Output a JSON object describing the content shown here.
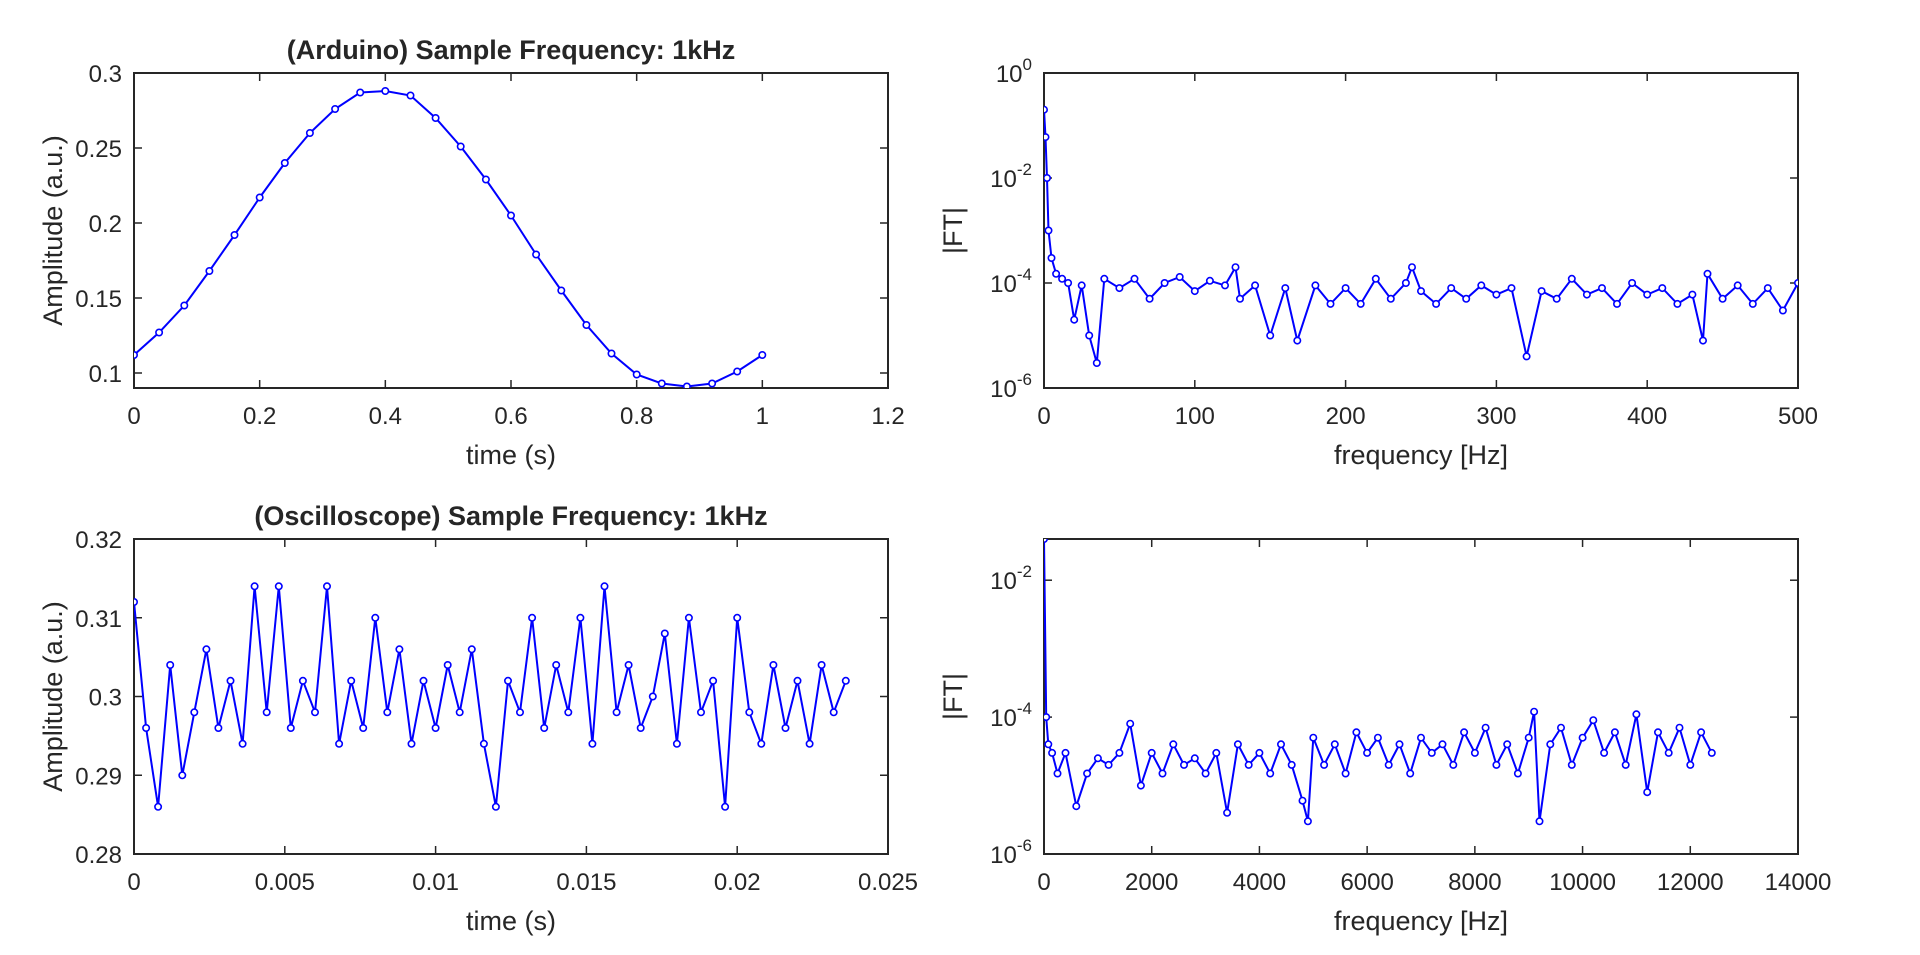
{
  "figure": {
    "background": "#ffffff",
    "line_color": "#0000ff",
    "axis_color": "#262626"
  },
  "chart_data": [
    {
      "type": "line",
      "title": "(Arduino) Sample Frequency: 1kHz",
      "xlabel": "time (s)",
      "ylabel": "Amplitude (a.u.)",
      "xlim": [
        0,
        1.2
      ],
      "ylim": [
        0.09,
        0.3
      ],
      "xticks": [
        0,
        0.2,
        0.4,
        0.6,
        0.8,
        1,
        1.2
      ],
      "xtick_labels": [
        "0",
        "0.2",
        "0.4",
        "0.6",
        "0.8",
        "1",
        "1.2"
      ],
      "yticks": [
        0.1,
        0.15,
        0.2,
        0.25,
        0.3
      ],
      "ytick_labels": [
        "0.1",
        "0.15",
        "0.2",
        "0.25",
        "0.3"
      ],
      "marker": "circle",
      "series": [
        {
          "x": [
            0,
            0.04,
            0.08,
            0.12,
            0.16,
            0.2,
            0.24,
            0.28,
            0.32,
            0.36,
            0.4,
            0.44,
            0.48,
            0.52,
            0.56,
            0.6,
            0.64,
            0.68,
            0.72,
            0.76,
            0.8,
            0.84,
            0.88,
            0.92,
            0.96,
            1
          ],
          "y": [
            0.112,
            0.127,
            0.145,
            0.168,
            0.192,
            0.217,
            0.24,
            0.26,
            0.276,
            0.287,
            0.288,
            0.285,
            0.27,
            0.251,
            0.229,
            0.205,
            0.179,
            0.155,
            0.132,
            0.113,
            0.099,
            0.093,
            0.091,
            0.093,
            0.101,
            0.112
          ]
        }
      ]
    },
    {
      "type": "line",
      "title": "",
      "xlabel": "frequency [Hz]",
      "ylabel": "|FT|",
      "xlim": [
        0,
        500
      ],
      "ylim": [
        1e-06,
        1
      ],
      "yscale": "log",
      "xticks": [
        0,
        100,
        200,
        300,
        400,
        500
      ],
      "xtick_labels": [
        "0",
        "100",
        "200",
        "300",
        "400",
        "500"
      ],
      "yticks": [
        1e-06,
        0.0001,
        0.01,
        1
      ],
      "ytick_base": "10",
      "ytick_exponents": [
        "-6",
        "-4",
        "-2",
        "0"
      ],
      "marker": "circle",
      "series": [
        {
          "x": [
            0,
            1,
            2,
            3,
            5,
            8,
            12,
            16,
            20,
            25,
            30,
            35,
            40,
            50,
            60,
            70,
            80,
            90,
            100,
            110,
            120,
            127,
            130,
            140,
            150,
            160,
            168,
            180,
            190,
            200,
            210,
            220,
            230,
            240,
            244,
            250,
            260,
            270,
            280,
            290,
            300,
            310,
            320,
            330,
            340,
            350,
            360,
            370,
            380,
            390,
            400,
            410,
            420,
            430,
            437,
            440,
            450,
            460,
            470,
            480,
            490,
            500
          ],
          "y": [
            0.2,
            0.06,
            0.01,
            0.001,
            0.0003,
            0.00015,
            0.00012,
            0.0001,
            2e-05,
            9e-05,
            1e-05,
            3e-06,
            0.00012,
            8e-05,
            0.00012,
            5e-05,
            0.0001,
            0.00013,
            7e-05,
            0.00011,
            9e-05,
            0.0002,
            5e-05,
            9e-05,
            1e-05,
            8e-05,
            8e-06,
            9e-05,
            4e-05,
            8e-05,
            4e-05,
            0.00012,
            5e-05,
            0.0001,
            0.0002,
            7e-05,
            4e-05,
            8e-05,
            5e-05,
            9e-05,
            6e-05,
            8e-05,
            4e-06,
            7e-05,
            5e-05,
            0.00012,
            6e-05,
            8e-05,
            4e-05,
            0.0001,
            6e-05,
            8e-05,
            4e-05,
            6e-05,
            8e-06,
            0.00015,
            5e-05,
            9e-05,
            4e-05,
            8e-05,
            3e-05,
            0.0001
          ]
        }
      ]
    },
    {
      "type": "line",
      "title": "(Oscilloscope) Sample Frequency: 1kHz",
      "xlabel": "time (s)",
      "ylabel": "Amplitude (a.u.)",
      "xlim": [
        0,
        0.025
      ],
      "ylim": [
        0.28,
        0.32
      ],
      "xticks": [
        0,
        0.005,
        0.01,
        0.015,
        0.02,
        0.025
      ],
      "xtick_labels": [
        "0",
        "0.005",
        "0.01",
        "0.015",
        "0.02",
        "0.025"
      ],
      "yticks": [
        0.28,
        0.29,
        0.3,
        0.31,
        0.32
      ],
      "ytick_labels": [
        "0.28",
        "0.29",
        "0.3",
        "0.31",
        "0.32"
      ],
      "marker": "circle",
      "series": [
        {
          "x": [
            0,
            0.0004,
            0.0008,
            0.0012,
            0.0016,
            0.002,
            0.0024,
            0.0028,
            0.0032,
            0.0036,
            0.004,
            0.0044,
            0.0048,
            0.0052,
            0.0056,
            0.006,
            0.0064,
            0.0068,
            0.0072,
            0.0076,
            0.008,
            0.0084,
            0.0088,
            0.0092,
            0.0096,
            0.01,
            0.0104,
            0.0108,
            0.0112,
            0.0116,
            0.012,
            0.0124,
            0.0128,
            0.0132,
            0.0136,
            0.014,
            0.0144,
            0.0148,
            0.0152,
            0.0156,
            0.016,
            0.0164,
            0.0168,
            0.0172,
            0.0176,
            0.018,
            0.0184,
            0.0188,
            0.0192,
            0.0196,
            0.02,
            0.0204,
            0.0208,
            0.0212,
            0.0216,
            0.022,
            0.0224,
            0.0228,
            0.0232,
            0.0236
          ],
          "y": [
            0.312,
            0.296,
            0.286,
            0.304,
            0.29,
            0.298,
            0.306,
            0.296,
            0.302,
            0.294,
            0.314,
            0.298,
            0.314,
            0.296,
            0.302,
            0.298,
            0.314,
            0.294,
            0.302,
            0.296,
            0.31,
            0.298,
            0.306,
            0.294,
            0.302,
            0.296,
            0.304,
            0.298,
            0.306,
            0.294,
            0.286,
            0.302,
            0.298,
            0.31,
            0.296,
            0.304,
            0.298,
            0.31,
            0.294,
            0.314,
            0.298,
            0.304,
            0.296,
            0.3,
            0.308,
            0.294,
            0.31,
            0.298,
            0.302,
            0.286,
            0.31,
            0.298,
            0.294,
            0.304,
            0.296,
            0.302,
            0.294,
            0.304,
            0.298,
            0.302
          ]
        }
      ]
    },
    {
      "type": "line",
      "title": "",
      "xlabel": "frequency [Hz]",
      "ylabel": "|FT|",
      "xlim": [
        0,
        14000
      ],
      "ylim": [
        1e-06,
        0.04
      ],
      "yscale": "log",
      "xticks": [
        0,
        2000,
        4000,
        6000,
        8000,
        10000,
        12000,
        14000
      ],
      "xtick_labels": [
        "0",
        "2000",
        "4000",
        "6000",
        "8000",
        "10000",
        "12000",
        "14000"
      ],
      "yticks": [
        1e-06,
        0.0001,
        0.01
      ],
      "ytick_base": "10",
      "ytick_exponents": [
        "-6",
        "-4",
        "-2"
      ],
      "marker": "circle",
      "series": [
        {
          "x": [
            0,
            40,
            80,
            150,
            250,
            400,
            600,
            800,
            1000,
            1200,
            1400,
            1600,
            1800,
            2000,
            2200,
            2400,
            2600,
            2800,
            3000,
            3200,
            3400,
            3600,
            3800,
            4000,
            4200,
            4400,
            4600,
            4800,
            4900,
            5000,
            5200,
            5400,
            5600,
            5800,
            6000,
            6200,
            6400,
            6600,
            6800,
            7000,
            7200,
            7400,
            7600,
            7800,
            8000,
            8200,
            8400,
            8600,
            8800,
            9000,
            9100,
            9200,
            9400,
            9600,
            9800,
            10000,
            10200,
            10400,
            10600,
            10800,
            11000,
            11200,
            11400,
            11600,
            11800,
            12000,
            12200,
            12400
          ],
          "y": [
            0.04,
            0.0001,
            4e-05,
            3e-05,
            1.5e-05,
            3e-05,
            5e-06,
            1.5e-05,
            2.5e-05,
            2e-05,
            3e-05,
            8e-05,
            1e-05,
            3e-05,
            1.5e-05,
            4e-05,
            2e-05,
            2.5e-05,
            1.5e-05,
            3e-05,
            4e-06,
            4e-05,
            2e-05,
            3e-05,
            1.5e-05,
            4e-05,
            2e-05,
            6e-06,
            3e-06,
            5e-05,
            2e-05,
            4e-05,
            1.5e-05,
            6e-05,
            3e-05,
            5e-05,
            2e-05,
            4e-05,
            1.5e-05,
            5e-05,
            3e-05,
            4e-05,
            2e-05,
            6e-05,
            3e-05,
            7e-05,
            2e-05,
            4e-05,
            1.5e-05,
            5e-05,
            0.00012,
            3e-06,
            4e-05,
            7e-05,
            2e-05,
            5e-05,
            9e-05,
            3e-05,
            6e-05,
            2e-05,
            0.00011,
            8e-06,
            6e-05,
            3e-05,
            7e-05,
            2e-05,
            6e-05,
            3e-05
          ]
        }
      ]
    }
  ]
}
